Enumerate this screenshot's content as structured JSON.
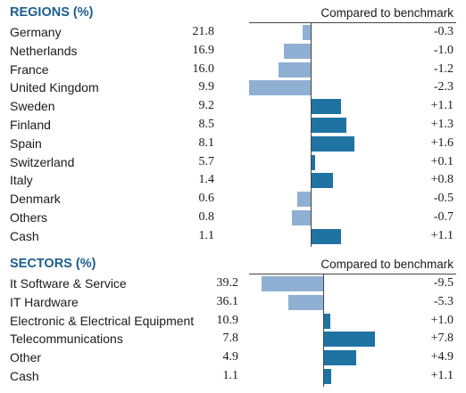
{
  "chart_data": [
    {
      "type": "bar",
      "title": "REGIONS (%)",
      "benchmark_label": "Compared to benchmark",
      "categories": [
        "Germany",
        "Netherlands",
        "France",
        "United Kingdom",
        "Sweden",
        "Finland",
        "Spain",
        "Switzerland",
        "Italy",
        "Denmark",
        "Others",
        "Cash"
      ],
      "weights": [
        "21.8",
        "16.9",
        "16.0",
        "9.9",
        "9.2",
        "8.5",
        "8.1",
        "5.7",
        "1.4",
        "0.6",
        "0.8",
        "1.1"
      ],
      "diff_labels": [
        "-0.3",
        "-1.0",
        "-1.2",
        "-2.3",
        "+1.1",
        "+1.3",
        "+1.6",
        "+0.1",
        "+0.8",
        "-0.5",
        "-0.7",
        "+1.1"
      ],
      "values": [
        -0.3,
        -1.0,
        -1.2,
        -2.3,
        1.1,
        1.3,
        1.6,
        0.1,
        0.8,
        -0.5,
        -0.7,
        1.1
      ]
    },
    {
      "type": "bar",
      "title": "SECTORS (%)",
      "benchmark_label": "Compared to benchmark",
      "categories": [
        "It Software & Service",
        "IT Hardware",
        "Electronic & Electrical Equipment",
        "Telecommunications",
        "Other",
        "Cash"
      ],
      "weights": [
        "39.2",
        "36.1",
        "10.9",
        "7.8",
        "4.9",
        "1.1"
      ],
      "diff_labels": [
        "-9.5",
        "-5.3",
        "+1.0",
        "+7.8",
        "+4.9",
        "+1.1"
      ],
      "values": [
        -9.5,
        -5.3,
        1.0,
        7.8,
        4.9,
        1.1
      ]
    }
  ],
  "colors": {
    "negative": "#8fb0d3",
    "positive": "#1f73a3",
    "title": "#1b5e8c"
  }
}
